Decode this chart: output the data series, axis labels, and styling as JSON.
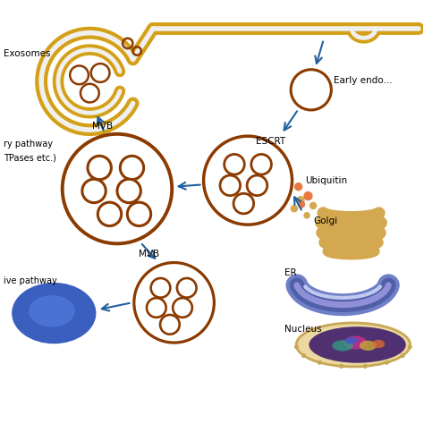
{
  "bg_color": "#ffffff",
  "membrane_gold": "#D4A017",
  "membrane_white": "#F0F0F0",
  "vesicle_color": "#8B3A00",
  "arrow_color": "#2060A0",
  "ubiquitin_color": "#E87840",
  "golgi_color": "#D4A850",
  "cell_blue": "#3B5FBF",
  "cell_blue2": "#4A72D4",
  "text_color": "#000000",
  "labels": {
    "exosomes": "Exosomes",
    "secretory1": "ry pathway",
    "secretory2": "TPases etc.)",
    "mvb_top": "MVB",
    "mvb_bot": "MVB",
    "escrt": "ESCRT",
    "early_endo": "Early endo...",
    "ubiquitin": "Ubiquitin",
    "golgi": "Golgi",
    "er": "ER",
    "nucleus": "Nucleus",
    "alt_pathway": "ive pathway"
  }
}
